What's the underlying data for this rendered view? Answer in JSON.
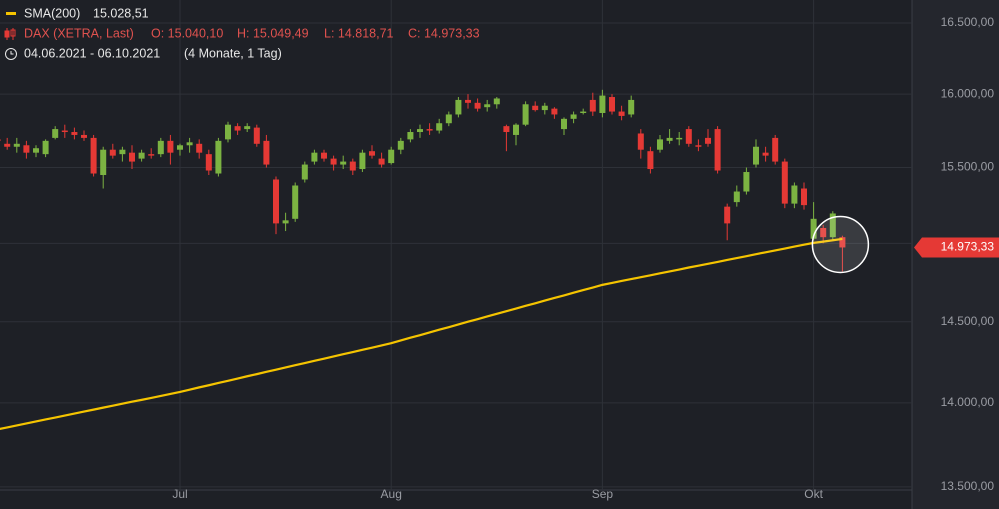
{
  "chart_data": {
    "type": "candlestick",
    "period": "04.06.2021 - 06.10.2021",
    "period_note": "(4 Monate, 1 Tag)",
    "sma_value_label": "15.028,51",
    "ohlc_labels": [
      "O: 15.040,10",
      "H: 15.049,49",
      "L: 14.818,71",
      "C: 14.973,33"
    ],
    "last_price": {
      "value": 14973.33,
      "label": "14.973,33"
    },
    "log_scale": true,
    "grid": true,
    "up_color": "#7cb342",
    "down_color": "#e53935",
    "ylim": [
      13482,
      16665
    ],
    "yticks": [
      {
        "value": 13500,
        "label": "13.500,00"
      },
      {
        "value": 14000,
        "label": "14.000,00"
      },
      {
        "value": 14500,
        "label": "14.500,00"
      },
      {
        "value": 15000,
        "label": "15.000,00"
      },
      {
        "value": 15500,
        "label": "15.500,00"
      },
      {
        "value": 16000,
        "label": "16.000,00"
      },
      {
        "value": 16500,
        "label": "16.500,00"
      }
    ],
    "categories": [
      null,
      null,
      null,
      null,
      null,
      null,
      null,
      null,
      null,
      null,
      null,
      null,
      null,
      null,
      null,
      null,
      null,
      null,
      null,
      "Jul",
      null,
      null,
      null,
      null,
      null,
      null,
      null,
      null,
      null,
      null,
      null,
      null,
      null,
      null,
      null,
      null,
      null,
      null,
      null,
      null,
      null,
      "Aug",
      null,
      null,
      null,
      null,
      null,
      null,
      null,
      null,
      null,
      null,
      null,
      null,
      null,
      null,
      null,
      null,
      null,
      null,
      null,
      null,
      null,
      "Sep",
      null,
      null,
      null,
      null,
      null,
      null,
      null,
      null,
      null,
      null,
      null,
      null,
      null,
      null,
      null,
      null,
      null,
      null,
      null,
      null,
      null,
      "Okt",
      null,
      null,
      null
    ],
    "series": [
      {
        "name": "DAX (XETRA, Last)",
        "open": [
          15690,
          15660,
          15640,
          15650,
          15600,
          15590,
          15700,
          15750,
          15740,
          15720,
          15700,
          15450,
          15620,
          15590,
          15600,
          15560,
          15590,
          15590,
          15680,
          15620,
          15650,
          15660,
          15590,
          15460,
          15690,
          15780,
          15760,
          15770,
          15680,
          15420,
          15130,
          15160,
          15420,
          15540,
          15600,
          15560,
          15520,
          15540,
          15490,
          15610,
          15560,
          15530,
          15620,
          15690,
          15740,
          15760,
          15750,
          15800,
          15860,
          15960,
          15940,
          15910,
          15930,
          15780,
          15720,
          15790,
          15920,
          15890,
          15900,
          15760,
          15830,
          15870,
          15960,
          15870,
          15980,
          15880,
          15860,
          15730,
          15610,
          15620,
          15680,
          15690,
          15760,
          15650,
          15700,
          15760,
          15240,
          15270,
          15340,
          15520,
          15600,
          15700,
          15540,
          15260,
          15360,
          15030,
          15100,
          15040,
          15040.1
        ],
        "high": [
          15720,
          15700,
          15700,
          15680,
          15650,
          15690,
          15780,
          15790,
          15770,
          15750,
          15720,
          15640,
          15660,
          15640,
          15650,
          15620,
          15630,
          15700,
          15720,
          15660,
          15700,
          15690,
          15620,
          15700,
          15810,
          15800,
          15800,
          15790,
          15720,
          15440,
          15200,
          15400,
          15540,
          15620,
          15620,
          15580,
          15580,
          15560,
          15620,
          15650,
          15600,
          15640,
          15700,
          15760,
          15790,
          15800,
          15830,
          15880,
          15980,
          16000,
          15970,
          15960,
          15980,
          15790,
          15800,
          15950,
          15950,
          15940,
          15910,
          15840,
          15880,
          15900,
          16010,
          16030,
          16000,
          15920,
          15990,
          15760,
          15640,
          15720,
          15760,
          15740,
          15780,
          15690,
          15760,
          15780,
          15260,
          15380,
          15500,
          15690,
          15640,
          15720,
          15560,
          15400,
          15400,
          15270,
          15120,
          15210,
          15049.49
        ],
        "low": [
          15650,
          15620,
          15600,
          15560,
          15570,
          15570,
          15690,
          15700,
          15690,
          15680,
          15440,
          15360,
          15560,
          15540,
          15490,
          15540,
          15560,
          15570,
          15520,
          15580,
          15600,
          15560,
          15450,
          15440,
          15670,
          15720,
          15740,
          15640,
          15500,
          15060,
          15080,
          15140,
          15400,
          15520,
          15540,
          15480,
          15490,
          15450,
          15470,
          15560,
          15500,
          15520,
          15590,
          15670,
          15700,
          15720,
          15730,
          15780,
          15840,
          15900,
          15880,
          15880,
          15900,
          15610,
          15650,
          15780,
          15880,
          15860,
          15830,
          15720,
          15800,
          15860,
          15850,
          15840,
          15860,
          15820,
          15840,
          15560,
          15460,
          15600,
          15660,
          15650,
          15640,
          15610,
          15640,
          15460,
          15020,
          15240,
          15320,
          15500,
          15540,
          15520,
          15230,
          15230,
          15220,
          15020,
          15000,
          15020,
          14818.71
        ],
        "close": [
          15680,
          15640,
          15660,
          15600,
          15630,
          15680,
          15760,
          15740,
          15720,
          15700,
          15460,
          15620,
          15580,
          15620,
          15540,
          15600,
          15580,
          15680,
          15600,
          15650,
          15670,
          15600,
          15480,
          15680,
          15790,
          15750,
          15780,
          15660,
          15520,
          15130,
          15150,
          15380,
          15520,
          15600,
          15560,
          15520,
          15540,
          15480,
          15600,
          15580,
          15520,
          15620,
          15680,
          15740,
          15760,
          15750,
          15800,
          15860,
          15960,
          15940,
          15900,
          15930,
          15970,
          15740,
          15790,
          15930,
          15890,
          15920,
          15860,
          15830,
          15860,
          15880,
          15880,
          15990,
          15880,
          15850,
          15960,
          15620,
          15490,
          15690,
          15700,
          15700,
          15660,
          15640,
          15660,
          15480,
          15130,
          15340,
          15470,
          15640,
          15580,
          15540,
          15260,
          15380,
          15250,
          15160,
          15040,
          15195,
          14973.33
        ]
      },
      {
        "name": "SMA(200)",
        "color": "#f5c400",
        "values": [
          13840,
          13852,
          13864,
          13876,
          13888,
          13900,
          13911,
          13923,
          13935,
          13947,
          13959,
          13971,
          13983,
          13995,
          14007,
          14018,
          14030,
          14042,
          14054,
          14066,
          14080,
          14094,
          14107,
          14121,
          14134,
          14148,
          14162,
          14175,
          14189,
          14202,
          14216,
          14230,
          14243,
          14257,
          14270,
          14284,
          14298,
          14311,
          14325,
          14338,
          14352,
          14366,
          14383,
          14400,
          14416,
          14433,
          14450,
          14466,
          14483,
          14500,
          14516,
          14533,
          14550,
          14566,
          14583,
          14600,
          14616,
          14633,
          14650,
          14666,
          14683,
          14700,
          14716,
          14733,
          14745,
          14758,
          14770,
          14782,
          14794,
          14807,
          14819,
          14831,
          14844,
          14856,
          14868,
          14880,
          14893,
          14905,
          14917,
          14930,
          14942,
          14954,
          14966,
          14979,
          14991,
          15003,
          15011,
          15020,
          15028.51
        ]
      }
    ]
  }
}
